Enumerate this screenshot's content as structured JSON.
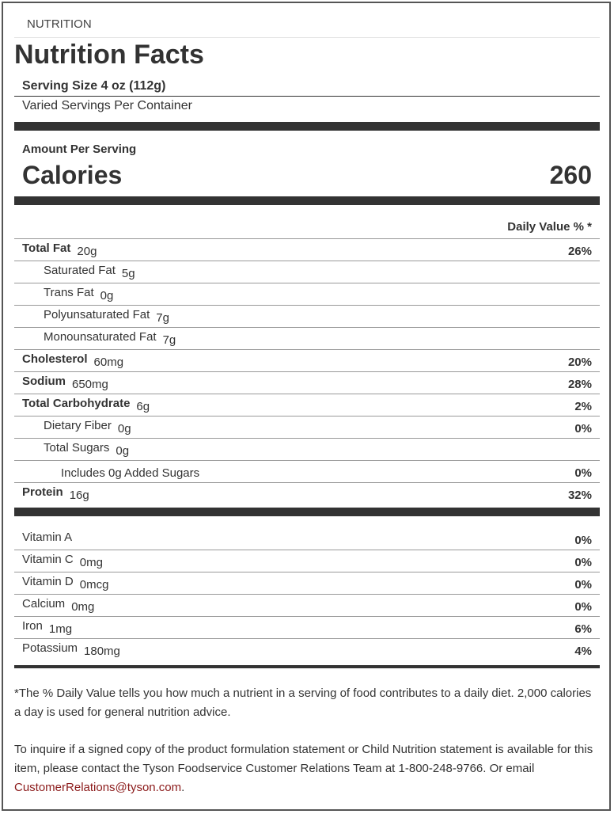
{
  "header": {
    "label": "NUTRITION",
    "title": "Nutrition Facts",
    "serving_size": "Serving Size 4 oz (112g)",
    "servings": "Varied Servings Per Container"
  },
  "calories": {
    "heading": "Amount Per Serving",
    "label": "Calories",
    "value": "260"
  },
  "dv_header": "Daily Value % *",
  "nutrients": [
    {
      "name": "Total Fat",
      "amount": "20g",
      "dv": "26%"
    },
    {
      "name": "Saturated Fat",
      "amount": "5g"
    },
    {
      "name": "Trans Fat",
      "amount": "0g"
    },
    {
      "name": "Polyunsaturated Fat",
      "amount": "7g"
    },
    {
      "name": "Monounsaturated Fat",
      "amount": "7g"
    },
    {
      "name": "Cholesterol",
      "amount": "60mg",
      "dv": "20%"
    },
    {
      "name": "Sodium",
      "amount": "650mg",
      "dv": "28%"
    },
    {
      "name": "Total Carbohydrate",
      "amount": "6g",
      "dv": "2%"
    },
    {
      "name": "Dietary Fiber",
      "amount": "0g",
      "dv": "0%"
    },
    {
      "name": "Total Sugars",
      "amount": "0g"
    },
    {
      "name": "Includes 0g Added Sugars",
      "dv": "0%"
    },
    {
      "name": "Protein",
      "amount": "16g",
      "dv": "32%"
    }
  ],
  "vitamins": [
    {
      "name": "Vitamin A",
      "dv": "0%"
    },
    {
      "name": "Vitamin C",
      "amount": "0mg",
      "dv": "0%"
    },
    {
      "name": "Vitamin D",
      "amount": "0mcg",
      "dv": "0%"
    },
    {
      "name": "Calcium",
      "amount": "0mg",
      "dv": "0%"
    },
    {
      "name": "Iron",
      "amount": "1mg",
      "dv": "6%"
    },
    {
      "name": "Potassium",
      "amount": "180mg",
      "dv": "4%"
    }
  ],
  "footnote": "*The % Daily Value tells you how much a nutrient in a serving of food contributes to a daily diet. 2,000 calories a day is used for general nutrition advice.",
  "inquiry": {
    "text": "To inquire if a signed copy of the product formulation statement or Child Nutrition statement is available for this item, please contact the Tyson Foodservice Customer Relations Team at 1-800-248-9766. Or email ",
    "email": "CustomerRelations@tyson.com",
    "end": "."
  }
}
